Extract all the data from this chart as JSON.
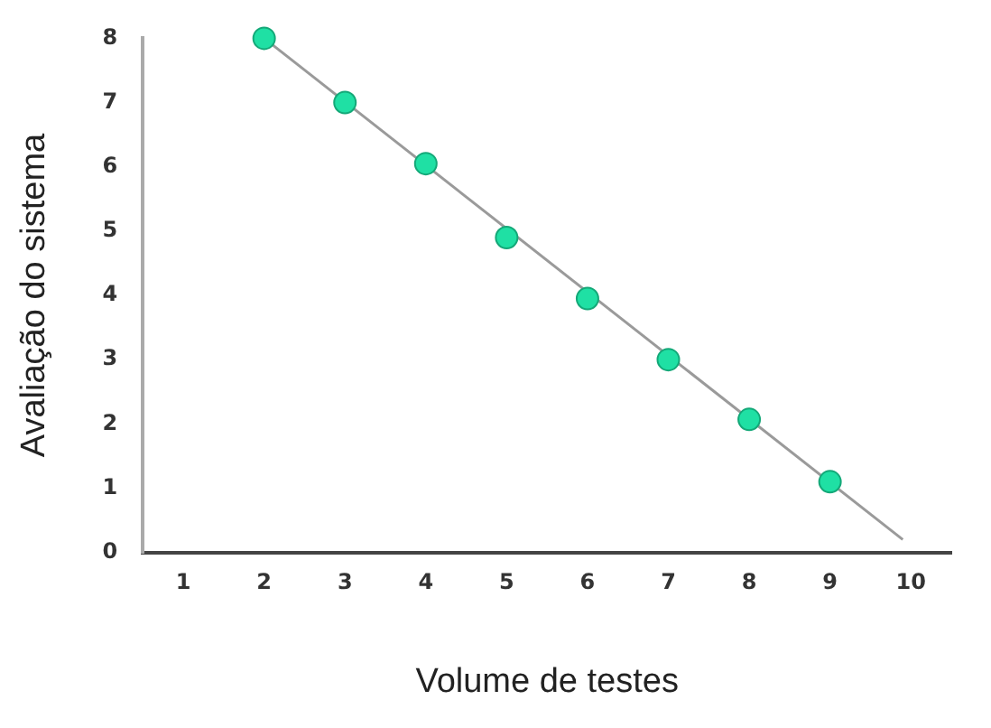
{
  "chart_data": {
    "type": "scatter",
    "xlabel": "Volume de testes",
    "ylabel": "Avaliação do sistema",
    "x": [
      2,
      3,
      4,
      5,
      6,
      7,
      8,
      9
    ],
    "values": [
      8,
      7,
      6.05,
      4.9,
      3.95,
      3,
      2.07,
      1.1
    ],
    "color": "#1fe0a4",
    "marker": "circle",
    "series": [
      {
        "type": "line",
        "x": [
          2,
          9.9
        ],
        "values": [
          8,
          0.2
        ],
        "color": "#9a9a9a",
        "marker": "none"
      }
    ],
    "xlim": [
      0.5,
      10.5
    ],
    "xticks": [
      1,
      2,
      3,
      4,
      5,
      6,
      7,
      8,
      9,
      10
    ],
    "ylim": [
      0,
      8
    ],
    "yticks": [
      0,
      1,
      2,
      3,
      4,
      5,
      6,
      7,
      8
    ],
    "grid": false,
    "legend": false
  }
}
